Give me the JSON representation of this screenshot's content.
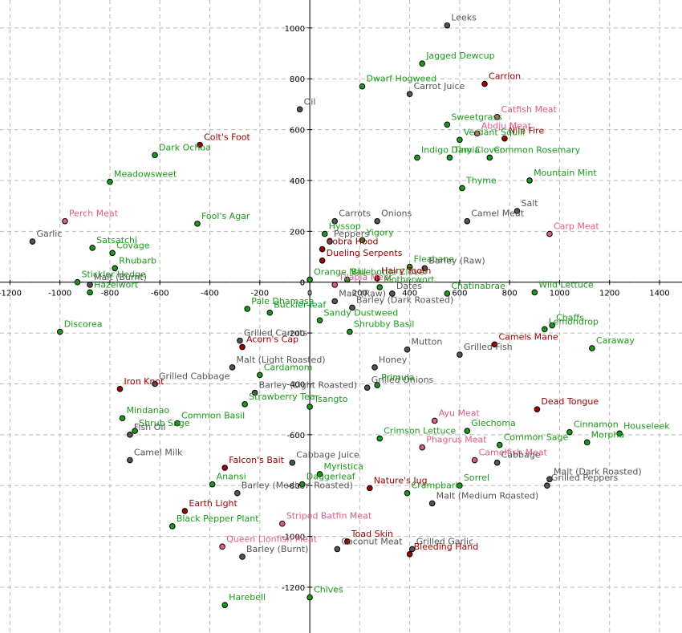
{
  "chart_data": {
    "type": "scatter",
    "title": "",
    "xlabel": "",
    "ylabel": "",
    "xlim": [
      -1240,
      1490
    ],
    "ylim": [
      -1380,
      1110
    ],
    "grid": true,
    "x_ticks": [
      -1200,
      -1000,
      -800,
      -600,
      -400,
      -200,
      0,
      200,
      400,
      600,
      800,
      1000,
      1200,
      1400
    ],
    "y_ticks": [
      -1200,
      -1000,
      -800,
      -600,
      -400,
      -200,
      0,
      200,
      400,
      600,
      800,
      1000
    ],
    "colors": {
      "green": "#1a9a1a",
      "gray": "#555555",
      "red": "#a00000",
      "pink": "#e05a8a"
    },
    "points": [
      {
        "label": "Leeks",
        "x": 550,
        "y": 1010,
        "color": "gray"
      },
      {
        "label": "Jagged Dewcup",
        "x": 450,
        "y": 860,
        "color": "green"
      },
      {
        "label": "Dwarf Hogweed",
        "x": 210,
        "y": 770,
        "color": "green"
      },
      {
        "label": "Carrion",
        "x": 700,
        "y": 780,
        "color": "red"
      },
      {
        "label": "Carrot Juice",
        "x": 400,
        "y": 740,
        "color": "gray"
      },
      {
        "label": "Oil",
        "x": -40,
        "y": 680,
        "color": "gray"
      },
      {
        "label": "Sweetgrass",
        "x": 550,
        "y": 620,
        "color": "green"
      },
      {
        "label": "Catfish Meat",
        "x": 750,
        "y": 650,
        "color": "pink"
      },
      {
        "label": "Abdju Meat",
        "x": 670,
        "y": 585,
        "color": "pink"
      },
      {
        "label": "Nile Fire",
        "x": 780,
        "y": 565,
        "color": "red"
      },
      {
        "label": "Colt's Foot",
        "x": -440,
        "y": 540,
        "color": "red"
      },
      {
        "label": "Verdant Squill",
        "x": 600,
        "y": 560,
        "color": "green"
      },
      {
        "label": "Dark Ochoa",
        "x": -620,
        "y": 500,
        "color": "green"
      },
      {
        "label": "Indigo Damia",
        "x": 430,
        "y": 490,
        "color": "green"
      },
      {
        "label": "Tiny Clover",
        "x": 560,
        "y": 490,
        "color": "green"
      },
      {
        "label": "Common Rosemary",
        "x": 720,
        "y": 490,
        "color": "green"
      },
      {
        "label": "Meadowsweet",
        "x": -800,
        "y": 395,
        "color": "green"
      },
      {
        "label": "Thyme",
        "x": 610,
        "y": 370,
        "color": "green"
      },
      {
        "label": "Mountain Mint",
        "x": 880,
        "y": 400,
        "color": "green"
      },
      {
        "label": "Salt",
        "x": 830,
        "y": 280,
        "color": "gray"
      },
      {
        "label": "Perch Meat",
        "x": -980,
        "y": 240,
        "color": "pink"
      },
      {
        "label": "Fool's Agar",
        "x": -450,
        "y": 230,
        "color": "green"
      },
      {
        "label": "Carrots",
        "x": 100,
        "y": 240,
        "color": "gray"
      },
      {
        "label": "Onions",
        "x": 270,
        "y": 240,
        "color": "gray"
      },
      {
        "label": "Camel Meat",
        "x": 630,
        "y": 240,
        "color": "gray"
      },
      {
        "label": "Carp Meat",
        "x": 960,
        "y": 190,
        "color": "pink"
      },
      {
        "label": "Garlic",
        "x": -1110,
        "y": 160,
        "color": "gray"
      },
      {
        "label": "Peppers",
        "x": 80,
        "y": 160,
        "color": "gray"
      },
      {
        "label": "Hyssop",
        "x": 60,
        "y": 190,
        "color": "green"
      },
      {
        "label": "Yigory",
        "x": 210,
        "y": 165,
        "color": "green"
      },
      {
        "label": "Satsatchi",
        "x": -870,
        "y": 135,
        "color": "green"
      },
      {
        "label": "Covage",
        "x": -790,
        "y": 115,
        "color": "green"
      },
      {
        "label": "Cobra Hood",
        "x": 50,
        "y": 130,
        "color": "red"
      },
      {
        "label": "Dueling Serpents",
        "x": 50,
        "y": 85,
        "color": "red"
      },
      {
        "label": "Rhubarb",
        "x": -780,
        "y": 55,
        "color": "green"
      },
      {
        "label": "Fleabane",
        "x": 400,
        "y": 60,
        "color": "green"
      },
      {
        "label": "Barley (Raw)",
        "x": 460,
        "y": 55,
        "color": "gray"
      },
      {
        "label": "Bluebottle Clover",
        "x": 150,
        "y": 10,
        "color": "green"
      },
      {
        "label": "Orange Nail",
        "x": 0,
        "y": 10,
        "color": "green"
      },
      {
        "label": "Hairy Tooth",
        "x": 270,
        "y": 15,
        "color": "red"
      },
      {
        "label": "Stickler Hedge",
        "x": -930,
        "y": 0,
        "color": "green"
      },
      {
        "label": "Malt (Burnt)",
        "x": -880,
        "y": -10,
        "color": "gray"
      },
      {
        "label": "Tilapia Meat",
        "x": 100,
        "y": -10,
        "color": "pink"
      },
      {
        "label": "Motherwort",
        "x": 280,
        "y": -20,
        "color": "green"
      },
      {
        "label": "Dates",
        "x": 330,
        "y": -45,
        "color": "gray"
      },
      {
        "label": "Chatinabrae",
        "x": 550,
        "y": -45,
        "color": "green"
      },
      {
        "label": "Wild Lettuce",
        "x": 900,
        "y": -40,
        "color": "green"
      },
      {
        "label": "Hazelwort",
        "x": -880,
        "y": -40,
        "color": "green"
      },
      {
        "label": "Malt (Raw)",
        "x": 100,
        "y": -75,
        "color": "gray"
      },
      {
        "label": "Pale Dhamasa",
        "x": -250,
        "y": -105,
        "color": "green"
      },
      {
        "label": "Buckler-leaf",
        "x": -160,
        "y": -120,
        "color": "green"
      },
      {
        "label": "Barley (Dark Roasted)",
        "x": 170,
        "y": -100,
        "color": "gray"
      },
      {
        "label": "Sandy Dustweed",
        "x": 40,
        "y": -150,
        "color": "green"
      },
      {
        "label": "Chaffs",
        "x": 970,
        "y": -170,
        "color": "green"
      },
      {
        "label": "Lemondrop",
        "x": 940,
        "y": -185,
        "color": "green"
      },
      {
        "label": "Discorea",
        "x": -1000,
        "y": -195,
        "color": "green"
      },
      {
        "label": "Grilled Carrots",
        "x": -280,
        "y": -230,
        "color": "gray"
      },
      {
        "label": "Acorn's Cap",
        "x": -270,
        "y": -255,
        "color": "red"
      },
      {
        "label": "Shrubby Basil",
        "x": 160,
        "y": -195,
        "color": "green"
      },
      {
        "label": "Mutton",
        "x": 390,
        "y": -265,
        "color": "gray"
      },
      {
        "label": "Camels Mane",
        "x": 740,
        "y": -245,
        "color": "red"
      },
      {
        "label": "Grilled Fish",
        "x": 600,
        "y": -285,
        "color": "gray"
      },
      {
        "label": "Caraway",
        "x": 1130,
        "y": -260,
        "color": "green"
      },
      {
        "label": "Malt (Light Roasted)",
        "x": -310,
        "y": -335,
        "color": "gray"
      },
      {
        "label": "Cardamom",
        "x": -200,
        "y": -365,
        "color": "green"
      },
      {
        "label": "Honey",
        "x": 260,
        "y": -335,
        "color": "gray"
      },
      {
        "label": "Iron Knot",
        "x": -760,
        "y": -420,
        "color": "red"
      },
      {
        "label": "Grilled Cabbage",
        "x": -620,
        "y": -400,
        "color": "gray"
      },
      {
        "label": "Barley (Light Roasted)",
        "x": -220,
        "y": -435,
        "color": "gray"
      },
      {
        "label": "Grilled Onions",
        "x": 230,
        "y": -415,
        "color": "gray"
      },
      {
        "label": "Primula",
        "x": 270,
        "y": -405,
        "color": "green"
      },
      {
        "label": "Strawberry Tea",
        "x": -260,
        "y": -480,
        "color": "green"
      },
      {
        "label": "Tsangto",
        "x": 0,
        "y": -490,
        "color": "green"
      },
      {
        "label": "Dead Tongue",
        "x": 910,
        "y": -500,
        "color": "red"
      },
      {
        "label": "Mindanao",
        "x": -750,
        "y": -535,
        "color": "green"
      },
      {
        "label": "Common Basil",
        "x": -530,
        "y": -555,
        "color": "green"
      },
      {
        "label": "Ayu Meat",
        "x": 500,
        "y": -545,
        "color": "pink"
      },
      {
        "label": "Shrub Sage",
        "x": -700,
        "y": -585,
        "color": "green"
      },
      {
        "label": "Fish Oil",
        "x": -720,
        "y": -600,
        "color": "gray"
      },
      {
        "label": "Glechoma",
        "x": 630,
        "y": -585,
        "color": "green"
      },
      {
        "label": "Cinnamon",
        "x": 1040,
        "y": -590,
        "color": "green"
      },
      {
        "label": "Houseleek",
        "x": 1240,
        "y": -595,
        "color": "green"
      },
      {
        "label": "Crimson Lettuce",
        "x": 280,
        "y": -615,
        "color": "green"
      },
      {
        "label": "Common Sage",
        "x": 760,
        "y": -640,
        "color": "green"
      },
      {
        "label": "Morpha",
        "x": 1110,
        "y": -630,
        "color": "green"
      },
      {
        "label": "Phagrus Meat",
        "x": 450,
        "y": -650,
        "color": "pink"
      },
      {
        "label": "Camel Milk",
        "x": -720,
        "y": -700,
        "color": "gray"
      },
      {
        "label": "Camelfish Meat",
        "x": 660,
        "y": -700,
        "color": "pink"
      },
      {
        "label": "Cabbage",
        "x": 750,
        "y": -710,
        "color": "gray"
      },
      {
        "label": "Falcon's Bait",
        "x": -340,
        "y": -730,
        "color": "red"
      },
      {
        "label": "Cabbage Juice",
        "x": -70,
        "y": -710,
        "color": "gray"
      },
      {
        "label": "Myristica",
        "x": 40,
        "y": -755,
        "color": "green"
      },
      {
        "label": "Malt (Dark Roasted)",
        "x": 960,
        "y": -775,
        "color": "gray"
      },
      {
        "label": "Anansi",
        "x": -390,
        "y": -795,
        "color": "green"
      },
      {
        "label": "Daggerleaf",
        "x": -30,
        "y": -795,
        "color": "green"
      },
      {
        "label": "Sorrel",
        "x": 600,
        "y": -800,
        "color": "green"
      },
      {
        "label": "Grilled Peppers",
        "x": 950,
        "y": -800,
        "color": "gray"
      },
      {
        "label": "Barley (Medium Roasted)",
        "x": -290,
        "y": -830,
        "color": "gray"
      },
      {
        "label": "Nature's Jug",
        "x": 240,
        "y": -810,
        "color": "red"
      },
      {
        "label": "Crampbark",
        "x": 390,
        "y": -830,
        "color": "green"
      },
      {
        "label": "Malt (Medium Roasted)",
        "x": 490,
        "y": -870,
        "color": "gray"
      },
      {
        "label": "Earth Light",
        "x": -500,
        "y": -900,
        "color": "red"
      },
      {
        "label": "Black Pepper Plant",
        "x": -550,
        "y": -960,
        "color": "green"
      },
      {
        "label": "Striped Batfin Meat",
        "x": -110,
        "y": -950,
        "color": "pink"
      },
      {
        "label": "Toad Skin",
        "x": 150,
        "y": -1020,
        "color": "red"
      },
      {
        "label": "Coconut Meat",
        "x": 110,
        "y": -1050,
        "color": "gray"
      },
      {
        "label": "Grilled Garlic",
        "x": 410,
        "y": -1050,
        "color": "gray"
      },
      {
        "label": "Queen Lionfish Meat",
        "x": -350,
        "y": -1040,
        "color": "pink"
      },
      {
        "label": "Bleeding Hand",
        "x": 400,
        "y": -1070,
        "color": "red"
      },
      {
        "label": "Barley (Burnt)",
        "x": -270,
        "y": -1080,
        "color": "gray"
      },
      {
        "label": "Chives",
        "x": 0,
        "y": -1240,
        "color": "green"
      },
      {
        "label": "Harebell",
        "x": -340,
        "y": -1270,
        "color": "green"
      }
    ]
  }
}
